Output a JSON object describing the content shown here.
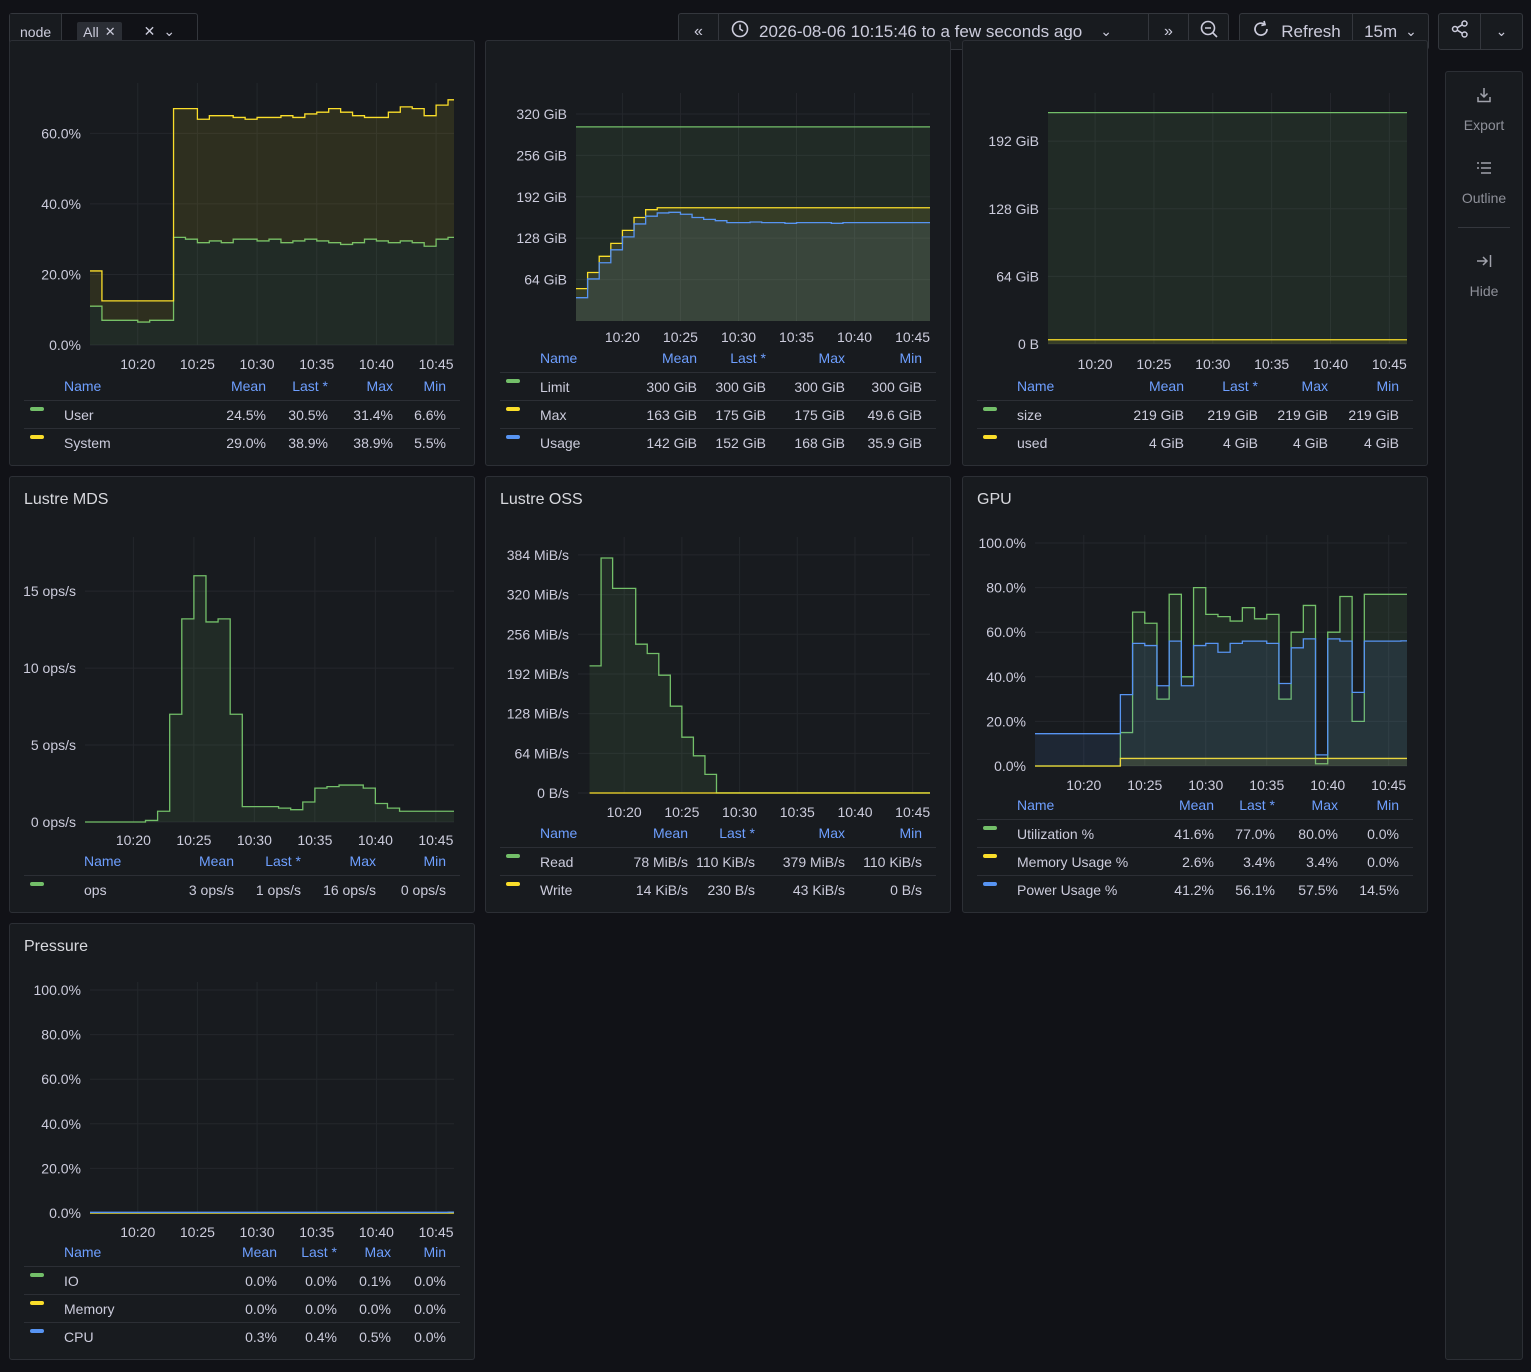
{
  "variable": {
    "label": "node",
    "value": "All",
    "remove": "✕",
    "clear": "✕",
    "chevron": "⌄"
  },
  "timepicker": {
    "back": "«",
    "range": "2026-08-06 10:15:46 to a few seconds ago",
    "chevron": "⌄",
    "forward": "»",
    "zoom": "⊖",
    "refresh_label": "Refresh",
    "refresh_interval": "15m",
    "share": "⋰",
    "more": "⌄"
  },
  "sidebar": {
    "export_label": "Export",
    "outline_label": "Outline",
    "hide_label": "Hide"
  },
  "colors": {
    "green": "#73bf69",
    "yellow": "#fade2a",
    "blue": "#5794f2"
  },
  "legend_headers": {
    "name": "Name",
    "mean": "Mean",
    "last": "Last *",
    "max": "Max",
    "min": "Min"
  },
  "xticks": [
    "10:20",
    "10:25",
    "10:30",
    "10:35",
    "10:40",
    "10:45"
  ],
  "panels": {
    "cpu": {
      "title": "",
      "chart_data": {
        "type": "area",
        "stacked": true,
        "ylim": [
          0,
          0.72
        ],
        "yticks": [
          "0.0%",
          "20.0%",
          "40.0%",
          "60.0%"
        ],
        "x_minutes": [
          16,
          17,
          18,
          19,
          20,
          21,
          22,
          23,
          24,
          25,
          26,
          27,
          28,
          29,
          30,
          31,
          32,
          33,
          34,
          35,
          36,
          37,
          38,
          39,
          40,
          41,
          42,
          43,
          44,
          45,
          46
        ],
        "series": [
          {
            "name": "User",
            "color": "green",
            "values": [
              0.11,
              0.07,
              0.07,
              0.07,
              0.065,
              0.07,
              0.07,
              0.305,
              0.3,
              0.29,
              0.295,
              0.29,
              0.3,
              0.3,
              0.295,
              0.3,
              0.29,
              0.295,
              0.3,
              0.295,
              0.29,
              0.285,
              0.29,
              0.3,
              0.295,
              0.29,
              0.295,
              0.29,
              0.28,
              0.3,
              0.305
            ]
          },
          {
            "name": "System",
            "color": "yellow",
            "values": [
              0.1,
              0.055,
              0.055,
              0.055,
              0.06,
              0.055,
              0.055,
              0.365,
              0.37,
              0.35,
              0.355,
              0.36,
              0.345,
              0.34,
              0.35,
              0.345,
              0.36,
              0.35,
              0.355,
              0.365,
              0.38,
              0.375,
              0.36,
              0.345,
              0.35,
              0.37,
              0.38,
              0.38,
              0.37,
              0.38,
              0.39
            ]
          }
        ]
      },
      "legend": [
        {
          "name": "User",
          "color": "green",
          "mean": "24.5%",
          "last": "30.5%",
          "max": "31.4%",
          "min": "6.6%"
        },
        {
          "name": "System",
          "color": "yellow",
          "mean": "29.0%",
          "last": "38.9%",
          "max": "38.9%",
          "min": "5.5%"
        }
      ]
    },
    "memory": {
      "title": "",
      "chart_data": {
        "type": "line",
        "ylim": [
          0,
          340
        ],
        "unit": "GiB",
        "yticks": [
          "64 GiB",
          "128 GiB",
          "192 GiB",
          "256 GiB",
          "320 GiB"
        ],
        "x_minutes": [
          16,
          17,
          18,
          19,
          20,
          21,
          22,
          23,
          24,
          25,
          26,
          27,
          28,
          29,
          30,
          31,
          32,
          33,
          34,
          35,
          36,
          37,
          38,
          39,
          40,
          41,
          42,
          43,
          44,
          45,
          46
        ],
        "series": [
          {
            "name": "Limit",
            "color": "green",
            "values": [
              300,
              300,
              300,
              300,
              300,
              300,
              300,
              300,
              300,
              300,
              300,
              300,
              300,
              300,
              300,
              300,
              300,
              300,
              300,
              300,
              300,
              300,
              300,
              300,
              300,
              300,
              300,
              300,
              300,
              300,
              300
            ]
          },
          {
            "name": "Max",
            "color": "yellow",
            "values": [
              50,
              75,
              100,
              120,
              140,
              160,
              172,
              175,
              175,
              175,
              175,
              175,
              175,
              175,
              175,
              175,
              175,
              175,
              175,
              175,
              175,
              175,
              175,
              175,
              175,
              175,
              175,
              175,
              175,
              175,
              175
            ]
          },
          {
            "name": "Usage",
            "color": "blue",
            "values": [
              36,
              65,
              90,
              110,
              130,
              150,
              162,
              167,
              168,
              165,
              160,
              157,
              155,
              152,
              152,
              153,
              152,
              152,
              151,
              152,
              152,
              152,
              151,
              152,
              152,
              152,
              152,
              152,
              152,
              152,
              152
            ]
          }
        ]
      },
      "legend": [
        {
          "name": "Limit",
          "color": "green",
          "mean": "300 GiB",
          "last": "300 GiB",
          "max": "300 GiB",
          "min": "300 GiB"
        },
        {
          "name": "Max",
          "color": "yellow",
          "mean": "163 GiB",
          "last": "175 GiB",
          "max": "175 GiB",
          "min": "49.6 GiB"
        },
        {
          "name": "Usage",
          "color": "blue",
          "mean": "142 GiB",
          "last": "152 GiB",
          "max": "168 GiB",
          "min": "35.9 GiB"
        }
      ]
    },
    "disk": {
      "title": "",
      "chart_data": {
        "type": "line",
        "ylim": [
          0,
          230
        ],
        "unit": "GiB",
        "yticks": [
          "0 B",
          "64 GiB",
          "128 GiB",
          "192 GiB"
        ],
        "x_minutes": [
          16,
          46
        ],
        "series": [
          {
            "name": "size",
            "color": "green",
            "values": [
              219,
              219
            ]
          },
          {
            "name": "used",
            "color": "yellow",
            "values": [
              4,
              4
            ]
          }
        ]
      },
      "legend": [
        {
          "name": "size",
          "color": "green",
          "mean": "219 GiB",
          "last": "219 GiB",
          "max": "219 GiB",
          "min": "219 GiB"
        },
        {
          "name": "used",
          "color": "yellow",
          "mean": "4 GiB",
          "last": "4 GiB",
          "max": "4 GiB",
          "min": "4 GiB"
        }
      ]
    },
    "mds": {
      "title": "Lustre MDS",
      "chart_data": {
        "type": "area",
        "ylim": [
          0,
          18
        ],
        "unit": "ops/s",
        "yticks": [
          "0 ops/s",
          "5 ops/s",
          "10 ops/s",
          "15 ops/s"
        ],
        "x_minutes": [
          16,
          17,
          18,
          19,
          20,
          21,
          22,
          23,
          24,
          25,
          26,
          27,
          28,
          29,
          30,
          31,
          32,
          33,
          34,
          35,
          36,
          37,
          38,
          39,
          40,
          41,
          42,
          43,
          44,
          45,
          46
        ],
        "series": [
          {
            "name": "ops",
            "color": "green",
            "values": [
              0,
              0,
              0,
              0,
              0,
              0.1,
              0.7,
              7,
              13.2,
              16,
              13,
              13.2,
              7,
              1,
              1,
              1,
              0.9,
              0.8,
              1.3,
              2.2,
              2.3,
              2.4,
              2.4,
              2.2,
              1.2,
              0.9,
              0.7,
              0.7,
              0.7,
              0.7,
              0.7
            ]
          }
        ]
      },
      "legend": [
        {
          "name": "ops",
          "color": "green",
          "mean": "3 ops/s",
          "last": "1 ops/s",
          "max": "16 ops/s",
          "min": "0 ops/s"
        }
      ]
    },
    "oss": {
      "title": "Lustre OSS",
      "chart_data": {
        "type": "area",
        "ylim": [
          0,
          400
        ],
        "unit": "MiB/s",
        "yticks": [
          "0 B/s",
          "64 MiB/s",
          "128 MiB/s",
          "192 MiB/s",
          "256 MiB/s",
          "320 MiB/s",
          "384 MiB/s"
        ],
        "x_minutes": [
          17,
          18,
          19,
          20,
          21,
          22,
          23,
          24,
          25,
          26,
          27,
          28,
          29,
          30,
          31,
          32,
          33,
          34,
          35,
          36,
          37,
          38,
          39,
          40,
          41,
          42,
          43,
          44,
          45,
          46
        ],
        "series": [
          {
            "name": "Read",
            "color": "green",
            "values": [
              205,
              379,
              330,
              330,
              240,
              225,
              190,
              140,
              90,
              60,
              30,
              0.1,
              0.1,
              0.1,
              0.1,
              0.1,
              0.1,
              0.1,
              0.1,
              0.1,
              0.1,
              0.1,
              0.1,
              0.1,
              0.1,
              0.1,
              0.1,
              0.1,
              0.1,
              0.1
            ]
          },
          {
            "name": "Write",
            "color": "yellow",
            "values": [
              0.04,
              0.04,
              0.04,
              0.04,
              0.04,
              0.04,
              0.04,
              0.04,
              0.04,
              0.04,
              0.04,
              0.01,
              0.01,
              0.01,
              0.01,
              0.01,
              0.01,
              0.01,
              0.01,
              0.01,
              0.01,
              0.01,
              0.01,
              0.01,
              0.01,
              0.01,
              0.01,
              0.01,
              0.01,
              0.01
            ]
          }
        ]
      },
      "legend": [
        {
          "name": "Read",
          "color": "green",
          "mean": "78 MiB/s",
          "last": "110 KiB/s",
          "max": "379 MiB/s",
          "min": "110 KiB/s"
        },
        {
          "name": "Write",
          "color": "yellow",
          "mean": "14 KiB/s",
          "last": "230 B/s",
          "max": "43 KiB/s",
          "min": "0 B/s"
        }
      ]
    },
    "gpu": {
      "title": "GPU",
      "chart_data": {
        "type": "area",
        "ylim": [
          0,
          1
        ],
        "yticks": [
          "0.0%",
          "20.0%",
          "40.0%",
          "60.0%",
          "80.0%",
          "100.0%"
        ],
        "x_minutes": [
          16,
          17,
          18,
          19,
          20,
          21,
          22,
          23,
          24,
          25,
          26,
          27,
          28,
          29,
          30,
          31,
          32,
          33,
          34,
          35,
          36,
          37,
          38,
          39,
          40,
          41,
          42,
          43,
          44,
          45,
          46
        ],
        "series": [
          {
            "name": "Utilization %",
            "color": "green",
            "values": [
              0,
              0,
              0,
              0,
              0,
              0,
              0,
              0.15,
              0.69,
              0.64,
              0.3,
              0.77,
              0.4,
              0.8,
              0.68,
              0.67,
              0.65,
              0.71,
              0.66,
              0.68,
              0.3,
              0.6,
              0.72,
              0.01,
              0.6,
              0.76,
              0.2,
              0.77,
              0.77,
              0.77,
              0.77
            ]
          },
          {
            "name": "Memory Usage %",
            "color": "yellow",
            "values": [
              0,
              0,
              0,
              0,
              0,
              0,
              0,
              0.034,
              0.034,
              0.034,
              0.034,
              0.034,
              0.034,
              0.034,
              0.034,
              0.034,
              0.034,
              0.034,
              0.034,
              0.034,
              0.034,
              0.034,
              0.034,
              0.034,
              0.034,
              0.034,
              0.034,
              0.034,
              0.034,
              0.034,
              0.034
            ]
          },
          {
            "name": "Power Usage %",
            "color": "blue",
            "values": [
              0.145,
              0.145,
              0.145,
              0.145,
              0.145,
              0.145,
              0.145,
              0.32,
              0.55,
              0.54,
              0.36,
              0.56,
              0.36,
              0.54,
              0.55,
              0.51,
              0.55,
              0.56,
              0.56,
              0.55,
              0.37,
              0.53,
              0.57,
              0.05,
              0.57,
              0.56,
              0.33,
              0.56,
              0.56,
              0.56,
              0.561
            ]
          }
        ]
      },
      "legend": [
        {
          "name": "Utilization %",
          "color": "green",
          "mean": "41.6%",
          "last": "77.0%",
          "max": "80.0%",
          "min": "0.0%"
        },
        {
          "name": "Memory Usage %",
          "color": "yellow",
          "mean": "2.6%",
          "last": "3.4%",
          "max": "3.4%",
          "min": "0.0%"
        },
        {
          "name": "Power Usage %",
          "color": "blue",
          "mean": "41.2%",
          "last": "56.1%",
          "max": "57.5%",
          "min": "14.5%"
        }
      ]
    },
    "pressure": {
      "title": "Pressure",
      "chart_data": {
        "type": "line",
        "ylim": [
          0,
          1
        ],
        "yticks": [
          "0.0%",
          "20.0%",
          "40.0%",
          "60.0%",
          "80.0%",
          "100.0%"
        ],
        "x_minutes": [
          16,
          46
        ],
        "series": [
          {
            "name": "IO",
            "color": "green",
            "values": [
              0.0,
              0.0
            ]
          },
          {
            "name": "Memory",
            "color": "yellow",
            "values": [
              0.0,
              0.0
            ]
          },
          {
            "name": "CPU",
            "color": "blue",
            "values": [
              0.003,
              0.004
            ]
          }
        ]
      },
      "legend": [
        {
          "name": "IO",
          "color": "green",
          "mean": "0.0%",
          "last": "0.0%",
          "max": "0.1%",
          "min": "0.0%"
        },
        {
          "name": "Memory",
          "color": "yellow",
          "mean": "0.0%",
          "last": "0.0%",
          "max": "0.0%",
          "min": "0.0%"
        },
        {
          "name": "CPU",
          "color": "blue",
          "mean": "0.3%",
          "last": "0.4%",
          "max": "0.5%",
          "min": "0.0%"
        }
      ]
    }
  }
}
